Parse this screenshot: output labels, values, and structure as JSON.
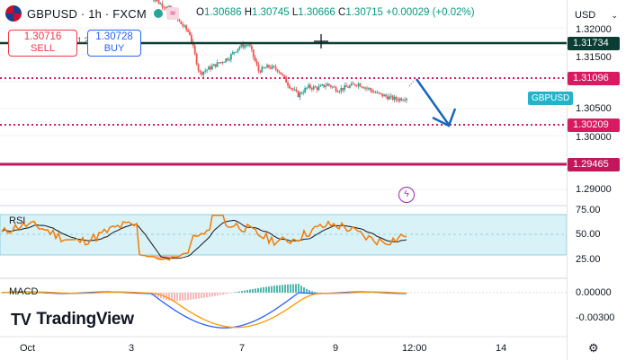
{
  "header": {
    "symbol": "GBPUSD · 1h · FXCM",
    "open_label": "O",
    "open": "1.30686",
    "high_label": "H",
    "high": "1.30745",
    "low_label": "L",
    "low": "1.30666",
    "close_label": "C",
    "close": "1.30715",
    "change": "+0.00029 (+0.02%)",
    "badge_glyph": "≈"
  },
  "trade": {
    "sell_price": "1.30716",
    "sell_label": "SELL",
    "spread": "1.2",
    "buy_price": "1.30728",
    "buy_label": "BUY"
  },
  "axis": {
    "currency": "USD",
    "price_ticks": [
      "1.32000",
      "1.31500",
      "1.30500",
      "1.30000",
      "1.29000"
    ],
    "rsi_ticks": [
      "75.00",
      "50.00",
      "25.00"
    ],
    "macd_ticks": [
      "0.00000",
      "-0.00300"
    ],
    "time_ticks": [
      "Oct",
      "3",
      "7",
      "9",
      "12:00",
      "14"
    ]
  },
  "levels": {
    "l1": "1.31734",
    "l2": "1.31096",
    "l3": "1.30209",
    "l4": "1.29465"
  },
  "series_tag": "GBPUSD",
  "panels": {
    "rsi_label": "RSI",
    "macd_label": "MACD"
  },
  "brand": {
    "name": "TradingView",
    "mark": "TV"
  },
  "colors": {
    "up": "#26a69a",
    "down": "#ef5350",
    "level_dark": "#0b3d33",
    "level_rose": "#d81b60",
    "level_crimson": "#c2185b",
    "arrow": "#1565c0",
    "rsi_band": "#d9f2f7",
    "rsi_line": "#f57c00",
    "macd_line": "#2962ff",
    "signal_line": "#ff9800"
  },
  "chart_data": {
    "type": "candlestick",
    "price_levels": [
      1.31734,
      1.31096,
      1.30209,
      1.29465
    ],
    "ohlc": {
      "open": 1.30686,
      "high": 1.30745,
      "low": 1.30666,
      "close": 1.30715
    },
    "rsi_range": [
      0,
      100
    ],
    "rsi_levels": [
      75,
      50,
      25
    ],
    "close_path": [
      1.326,
      1.3245,
      1.3235,
      1.321,
      1.319,
      1.3115,
      1.3125,
      1.3135,
      1.3145,
      1.3165,
      1.317,
      1.312,
      1.3128,
      1.3122,
      1.3095,
      1.3075,
      1.309,
      1.3088,
      1.3095,
      1.3085,
      1.309,
      1.3097,
      1.3088,
      1.3078,
      1.3072,
      1.3067,
      1.3071
    ],
    "projection": {
      "from": 1.3109,
      "to": 1.3021
    }
  }
}
